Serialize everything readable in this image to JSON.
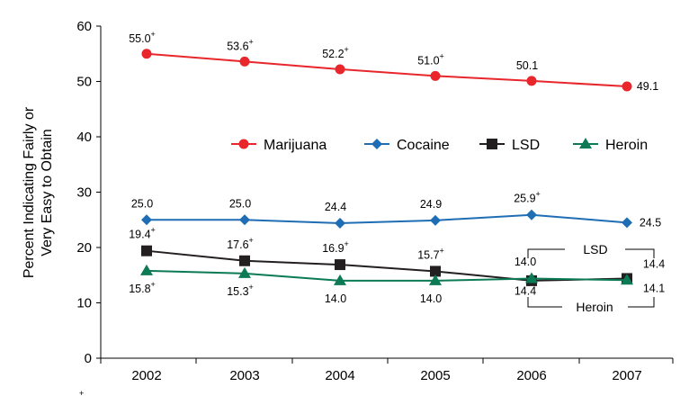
{
  "chart_data": {
    "type": "line",
    "x": [
      "2002",
      "2003",
      "2004",
      "2005",
      "2006",
      "2007"
    ],
    "ylabel": [
      "Percent Indicating Fairly or",
      "Very Easy to Obtain"
    ],
    "ylim": [
      0,
      60
    ],
    "yticks": [
      "0",
      "10",
      "20",
      "30",
      "40",
      "50",
      "60"
    ],
    "legend_position": "middle-right",
    "series": [
      {
        "name": "Marijuana",
        "color": "#e8262b",
        "marker": "circle",
        "values": [
          55.0,
          53.6,
          52.2,
          51.0,
          50.1,
          49.1
        ],
        "labels": [
          "55.0",
          "53.6",
          "52.2",
          "51.0",
          "50.1",
          "49.1"
        ],
        "sup": [
          "+",
          "+",
          "+",
          "+",
          "",
          ""
        ]
      },
      {
        "name": "Cocaine",
        "color": "#1f6eb5",
        "marker": "diamond",
        "values": [
          25.0,
          25.0,
          24.4,
          24.9,
          25.9,
          24.5
        ],
        "labels": [
          "25.0",
          "25.0",
          "24.4",
          "24.9",
          "25.9",
          "24.5"
        ],
        "sup": [
          "",
          "",
          "",
          "",
          "+",
          ""
        ]
      },
      {
        "name": "LSD",
        "color": "#231f20",
        "marker": "square",
        "values": [
          19.4,
          17.6,
          16.9,
          15.7,
          14.0,
          14.4
        ],
        "labels": [
          "19.4",
          "17.6",
          "16.9",
          "15.7",
          "14.0",
          "14.4"
        ],
        "sup": [
          "+",
          "+",
          "+",
          "+",
          "",
          ""
        ]
      },
      {
        "name": "Heroin",
        "color": "#0b7a55",
        "marker": "triangle",
        "values": [
          15.8,
          15.3,
          14.0,
          14.0,
          14.4,
          14.1
        ],
        "labels": [
          "15.8",
          "15.3",
          "14.0",
          "14.0",
          "14.4",
          "14.1"
        ],
        "sup": [
          "+",
          "+",
          "",
          "",
          "",
          ""
        ]
      }
    ],
    "annotations": [
      "LSD",
      "Heroin"
    ],
    "footnote_mark": "+"
  }
}
